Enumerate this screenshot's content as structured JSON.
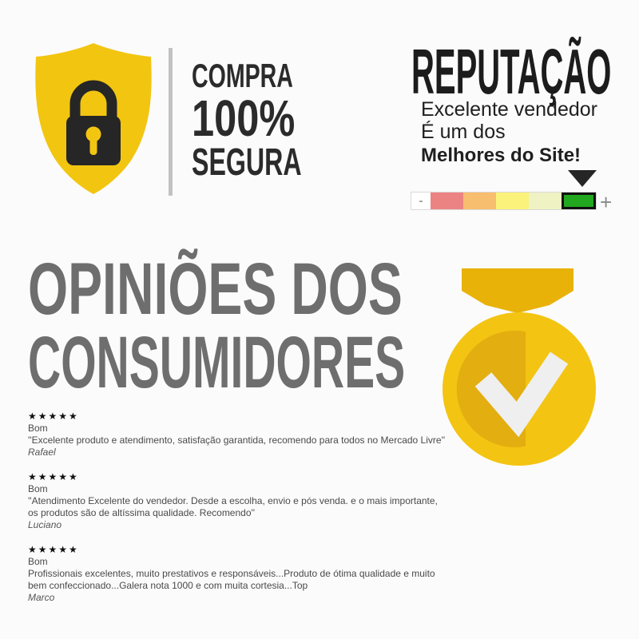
{
  "secure_badge": {
    "title_line1": "COMPRA",
    "title_line2": "100%",
    "title_line3": "SEGURA",
    "shield_color": "#F2C511",
    "lock_color": "#262626"
  },
  "reputation": {
    "title": "REPUTAÇÃO",
    "subtitle_line1": "Excelente vendedor",
    "subtitle_line2": "É um dos",
    "subtitle_line3": "Melhores do Site!",
    "scale": {
      "minus_label": "-",
      "plus_label": "+",
      "selected_index": 5,
      "segments": [
        {
          "color": "#FFFFFF"
        },
        {
          "color": "#EC8383"
        },
        {
          "color": "#F8BE6F"
        },
        {
          "color": "#FBF27B"
        },
        {
          "color": "#EFF3C4"
        },
        {
          "color": "#22A81E"
        }
      ]
    }
  },
  "opinions": {
    "title_line1": "OPINIÕES DOS",
    "title_line2": "CONSUMIDORES",
    "medal_colors": {
      "base": "#F3C412",
      "shade": "#E2AE10",
      "ribbon": "#E8B209",
      "check": "#EFEFEF"
    },
    "reviews": [
      {
        "stars": "★★★★★",
        "rating_label": "Bom",
        "text": "''Excelente produto e atendimento, satisfação garantida, recomendo para todos no Mercado Livre''",
        "author": "Rafael"
      },
      {
        "stars": "★★★★★",
        "rating_label": "Bom",
        "text": "''Atendimento Excelente do vendedor. Desde a escolha, envio e pós venda. e o mais importante, os produtos são de altíssima qualidade. Recomendo''",
        "author": "Luciano"
      },
      {
        "stars": "★★★★★",
        "rating_label": "Bom",
        "text": "Profissionais excelentes, muito prestativos e responsáveis...Produto de ótima qualidade e muito bem confeccionado...Galera nota 1000 e com muita cortesia...Top",
        "author": "Marco"
      }
    ]
  }
}
